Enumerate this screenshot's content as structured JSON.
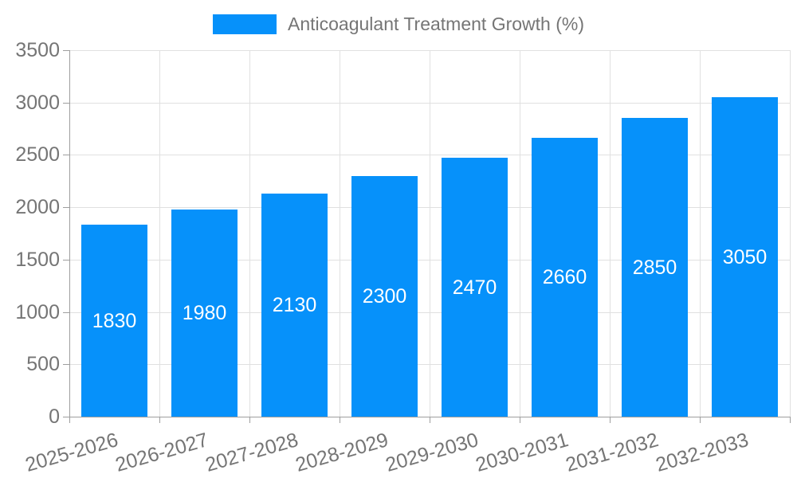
{
  "legend": {
    "label": "Anticoagulant Treatment Growth (%)"
  },
  "chart_data": {
    "type": "bar",
    "title": "",
    "series_name": "Anticoagulant Treatment Growth (%)",
    "categories": [
      "2025-2026",
      "2026-2027",
      "2027-2028",
      "2028-2029",
      "2029-2030",
      "2030-2031",
      "2031-2032",
      "2032-2033"
    ],
    "values": [
      1830,
      1980,
      2130,
      2300,
      2470,
      2660,
      2850,
      3050
    ],
    "xlabel": "",
    "ylabel": "",
    "ylim": [
      0,
      3500
    ],
    "yticks": [
      0,
      500,
      1000,
      1500,
      2000,
      2500,
      3000,
      3500
    ],
    "grid": true,
    "legend_position": "top-center",
    "value_labels": "inside-center",
    "colors": {
      "bar": "#0691fa",
      "bar_value_label": "#ffffff",
      "grid_line": "#e0e0e0",
      "axis_line": "#9e9e9e",
      "axis_text": "#757575",
      "legend_text": "#757575",
      "background": "#ffffff"
    }
  }
}
